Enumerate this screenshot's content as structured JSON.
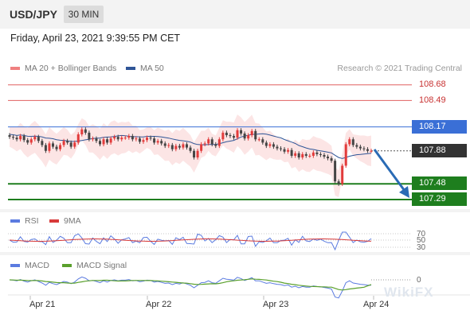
{
  "header": {
    "pair": "USD/JPY",
    "timeframe": "30 MIN"
  },
  "timestamp": "Friday, April 23, 2021 9:39:55 PM CET",
  "legend": [
    {
      "label": "MA 20 + Bollinger Bands",
      "color": "#f08080"
    },
    {
      "label": "MA 50",
      "color": "#2f5597"
    }
  ],
  "credit": "Research © 2021 Trading Central",
  "watermark": "WikiFX",
  "colors": {
    "resistance": "#e06060",
    "pivot": "#3a6fd6",
    "support": "#1e7e1e",
    "current": "#333333",
    "candle_up": "#e23b3b",
    "candle_down": "#444444",
    "bollinger": "#fbdcdc",
    "arrow": "#2a6bb5",
    "rsi": "#5b7be0",
    "rsi_ma": "#d83a3a",
    "macd": "#5b7be0",
    "macd_signal": "#5aa02c"
  },
  "chart_data": [
    {
      "type": "candlestick",
      "title": "USD/JPY 30 MIN",
      "x_ticks": [
        "Apr 21",
        "Apr 22",
        "Apr 23",
        "Apr 24"
      ],
      "ylim": [
        107.25,
        108.75
      ],
      "levels": [
        {
          "label": "108.68",
          "value": 108.68,
          "kind": "resistance"
        },
        {
          "label": "108.49",
          "value": 108.49,
          "kind": "resistance"
        },
        {
          "label": "108.17",
          "value": 108.17,
          "kind": "pivot"
        },
        {
          "label": "107.88",
          "value": 107.88,
          "kind": "current"
        },
        {
          "label": "107.48",
          "value": 107.48,
          "kind": "support"
        },
        {
          "label": "107.29",
          "value": 107.29,
          "kind": "support"
        }
      ],
      "series_close": [
        108.05,
        108.04,
        108.02,
        108.06,
        108.01,
        107.98,
        108.02,
        108.05,
        108.0,
        107.95,
        107.88,
        107.97,
        107.93,
        107.9,
        107.95,
        108.0,
        107.98,
        107.93,
        107.98,
        108.08,
        108.14,
        108.1,
        108.02,
        108.03,
        108.0,
        107.96,
        108.02,
        107.98,
        108.03,
        108.05,
        108.02,
        108.04,
        108.04,
        108.06,
        108.02,
        108.03,
        107.99,
        108.01,
        108.04,
        108.03,
        107.98,
        108.0,
        107.97,
        107.94,
        107.95,
        107.9,
        107.94,
        107.92,
        107.96,
        107.92,
        107.88,
        107.8,
        107.88,
        107.96,
        107.97,
        108.02,
        107.96,
        107.94,
        108.02,
        108.1,
        108.07,
        108.06,
        108.04,
        108.13,
        108.09,
        108.03,
        108.07,
        108.12,
        108.02,
        108.02,
        107.98,
        107.94,
        107.96,
        107.93,
        107.91,
        107.9,
        107.87,
        107.89,
        107.82,
        107.85,
        107.8,
        107.84,
        107.82,
        107.82,
        107.86,
        107.84,
        107.83,
        107.81,
        107.79,
        107.76,
        107.51,
        107.48,
        107.7,
        107.96,
        108.02,
        107.95,
        107.93,
        107.91,
        107.9,
        107.88,
        107.88
      ]
    },
    {
      "type": "line",
      "title": "RSI",
      "series": [
        {
          "name": "RSI"
        },
        {
          "name": "9MA"
        }
      ],
      "levels": [
        "70",
        "50",
        "30"
      ]
    },
    {
      "type": "line",
      "title": "MACD",
      "series": [
        {
          "name": "MACD"
        },
        {
          "name": "MACD Signal"
        }
      ],
      "levels": [
        "0"
      ]
    }
  ]
}
